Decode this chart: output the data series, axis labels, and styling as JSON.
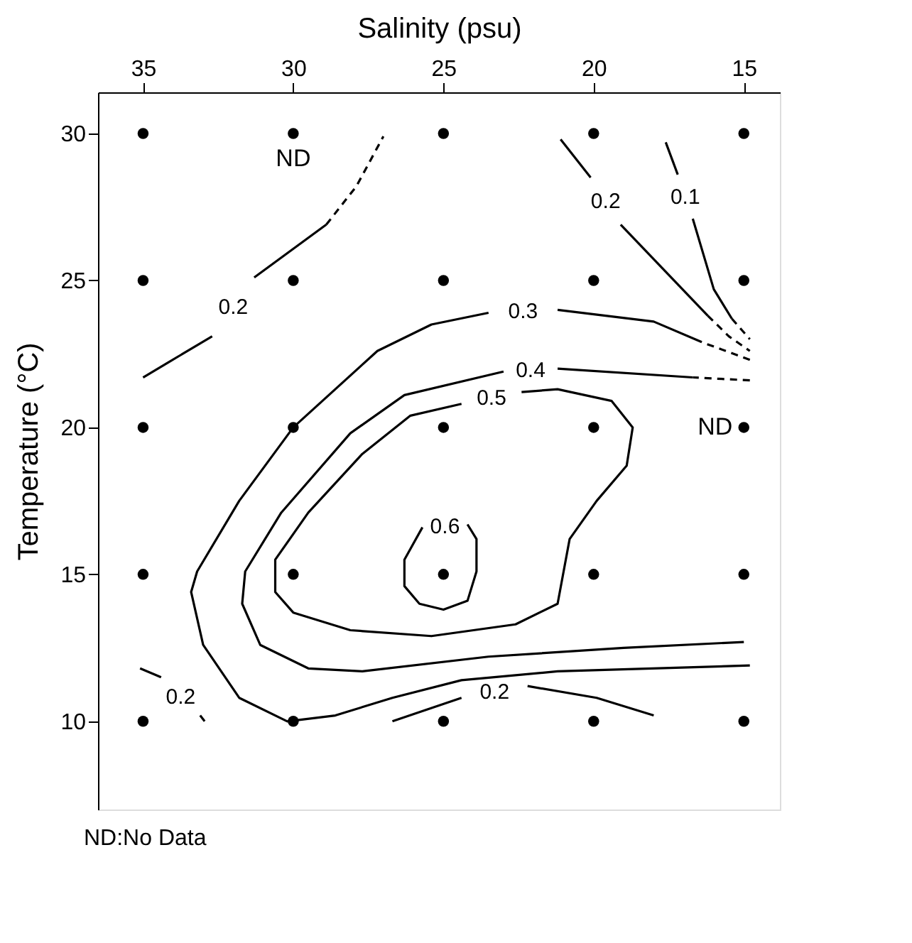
{
  "chart_data": {
    "type": "line",
    "xlabel": "Salinity (psu)",
    "ylabel": "Temperature (°C)",
    "xlim": [
      36.5,
      13.8
    ],
    "ylim": [
      7.0,
      31.4
    ],
    "xticks": [
      35,
      30,
      25,
      20,
      15
    ],
    "yticks": [
      10,
      15,
      20,
      25,
      30
    ],
    "grid": false,
    "series": [
      {
        "type": "scatter",
        "marker": "circle",
        "color": "#000000",
        "x": [
          35,
          30,
          25,
          20,
          15,
          35,
          30,
          25,
          20,
          15,
          35,
          30,
          25,
          20,
          15,
          35,
          30,
          25,
          20,
          15,
          35,
          30,
          25,
          20,
          15
        ],
        "values": [
          30,
          30,
          30,
          30,
          30,
          25,
          25,
          25,
          25,
          25,
          20,
          20,
          20,
          20,
          20,
          15,
          15,
          15,
          15,
          15,
          10,
          10,
          10,
          10,
          10
        ]
      },
      {
        "name": "0.2",
        "line_style": "solid",
        "color": "#000000",
        "x": [
          35,
          32.7
        ],
        "values": [
          21.7,
          23.1
        ]
      },
      {
        "line_style": "solid",
        "color": "#000000",
        "x": [
          31.3,
          28.9
        ],
        "values": [
          25.1,
          26.9
        ]
      },
      {
        "line_style": "dashed",
        "color": "#000000",
        "x": [
          28.9,
          27.9,
          27.0
        ],
        "values": [
          26.9,
          28.2,
          29.9
        ]
      },
      {
        "name": "0.2",
        "line_style": "solid",
        "color": "#000000",
        "x": [
          21.1,
          20.1
        ],
        "values": [
          29.8,
          28.5
        ]
      },
      {
        "line_style": "solid",
        "color": "#000000",
        "x": [
          19.1,
          16.2
        ],
        "values": [
          26.9,
          23.8
        ]
      },
      {
        "line_style": "dashed",
        "color": "#000000",
        "x": [
          16.2,
          15.5,
          14.8
        ],
        "values": [
          23.8,
          23.1,
          22.6
        ]
      },
      {
        "name": "0.1",
        "line_style": "solid",
        "color": "#000000",
        "x": [
          17.6,
          17.2
        ],
        "values": [
          29.7,
          28.6
        ]
      },
      {
        "line_style": "solid",
        "color": "#000000",
        "x": [
          16.7,
          16.0,
          15.4
        ],
        "values": [
          27.1,
          24.7,
          23.7
        ]
      },
      {
        "line_style": "dashed",
        "color": "#000000",
        "x": [
          15.4,
          14.8
        ],
        "values": [
          23.7,
          23.0
        ]
      },
      {
        "line_style": "dashed",
        "color": "#000000",
        "x": [
          14.8,
          16.4
        ],
        "values": [
          22.3,
          22.9
        ]
      },
      {
        "name": "0.3",
        "line_style": "solid",
        "color": "#000000",
        "x": [
          16.4,
          18.0,
          21.2
        ],
        "values": [
          22.9,
          23.6,
          24.0
        ]
      },
      {
        "line_style": "solid",
        "color": "#000000",
        "x": [
          23.5,
          25.4,
          27.2,
          30.0,
          31.8,
          33.2,
          33.4,
          33.0,
          31.8,
          30.2,
          28.6,
          26.7,
          24.4,
          21.2,
          14.8
        ],
        "values": [
          23.9,
          23.5,
          22.6,
          20.0,
          17.5,
          15.1,
          14.4,
          12.6,
          10.8,
          10.0,
          10.2,
          10.8,
          11.4,
          11.7,
          11.9
        ]
      },
      {
        "line_style": "dashed",
        "color": "#000000",
        "x": [
          14.8,
          16.7
        ],
        "values": [
          21.6,
          21.7
        ]
      },
      {
        "name": "0.4",
        "line_style": "solid",
        "color": "#000000",
        "x": [
          15.0,
          19.0,
          23.5,
          27.7,
          29.5,
          31.1,
          31.7,
          31.6,
          30.4,
          28.1,
          26.3,
          23.0
        ],
        "values": [
          12.7,
          12.5,
          12.2,
          11.7,
          11.8,
          12.6,
          14.0,
          15.1,
          17.1,
          19.8,
          21.1,
          21.9
        ]
      },
      {
        "line_style": "solid",
        "color": "#000000",
        "x": [
          21.2,
          16.7
        ],
        "values": [
          22.0,
          21.7
        ]
      },
      {
        "name": "0.5",
        "line_style": "solid",
        "color": "#000000",
        "x": [
          22.4,
          21.2,
          19.4,
          18.7,
          18.9,
          19.9,
          20.8,
          21.2,
          22.6,
          25.4,
          28.1,
          30.0,
          30.6,
          30.6,
          29.5,
          27.7,
          26.1,
          24.4
        ],
        "values": [
          21.2,
          21.3,
          20.9,
          20.0,
          18.7,
          17.5,
          16.2,
          14.0,
          13.3,
          12.9,
          13.1,
          13.7,
          14.4,
          15.5,
          17.1,
          19.1,
          20.4,
          20.8
        ]
      },
      {
        "name": "0.6",
        "line_style": "solid",
        "color": "#000000",
        "x": [
          24.2,
          23.9,
          23.9,
          24.2,
          25.0,
          25.8,
          26.3,
          26.3,
          25.7
        ],
        "values": [
          16.7,
          16.2,
          15.1,
          14.1,
          13.8,
          14.0,
          14.6,
          15.5,
          16.6
        ]
      },
      {
        "name": "0.2",
        "line_style": "solid",
        "color": "#000000",
        "x": [
          26.7,
          24.4
        ],
        "values": [
          10.0,
          10.8
        ]
      },
      {
        "line_style": "solid",
        "color": "#000000",
        "x": [
          22.2,
          19.9,
          18.0
        ],
        "values": [
          11.2,
          10.8,
          10.2
        ]
      },
      {
        "name": "0.2",
        "line_style": "solid",
        "color": "#000000",
        "x": [
          35.1,
          34.4
        ],
        "values": [
          11.8,
          11.5
        ]
      },
      {
        "line_style": "solid",
        "color": "#000000",
        "x": [
          33.1,
          32.95
        ],
        "values": [
          10.2,
          10.0
        ]
      }
    ],
    "annotations": [
      {
        "text": "ND",
        "x": 30,
        "y": 30
      },
      {
        "text": "ND",
        "x": 15,
        "y": 20
      },
      "ND:No Data"
    ]
  }
}
